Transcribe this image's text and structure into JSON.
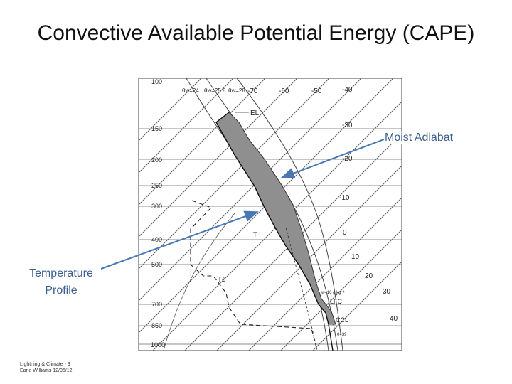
{
  "title": "Convective Available Potential Energy (CAPE)",
  "annotations": {
    "moist_adiabat": "Moist Adiabat",
    "temperature_profile_line1": "Temperature",
    "temperature_profile_line2": "Profile"
  },
  "footer": {
    "line1": "Lightning & Climate - 9",
    "line2": "Earle Williams 12/06/12"
  },
  "diagram": {
    "pressure_labels": [
      "100",
      "150",
      "200",
      "250",
      "300",
      "400",
      "500",
      "700",
      "850",
      "1000"
    ],
    "temperature_labels_top": [
      "-70",
      "-60",
      "-50",
      "-40"
    ],
    "temperature_labels_right": [
      "-30",
      "-20",
      "-10",
      "0",
      "10",
      "20",
      "30",
      "40"
    ],
    "adiabat_labels": [
      "θw=24",
      "θw=25.8",
      "θw=28"
    ],
    "level_labels": {
      "el": "EL",
      "lfc": "LFC",
      "ccl": "CCL",
      "t": "T",
      "td": "Td",
      "mixing_ratio": "w=16 g kg⁻¹",
      "theta": "θ=39"
    },
    "colors": {
      "cape_fill": "#8f8f8f",
      "arrow": "#4a78b5",
      "callout_text": "#3b5f8f"
    }
  }
}
